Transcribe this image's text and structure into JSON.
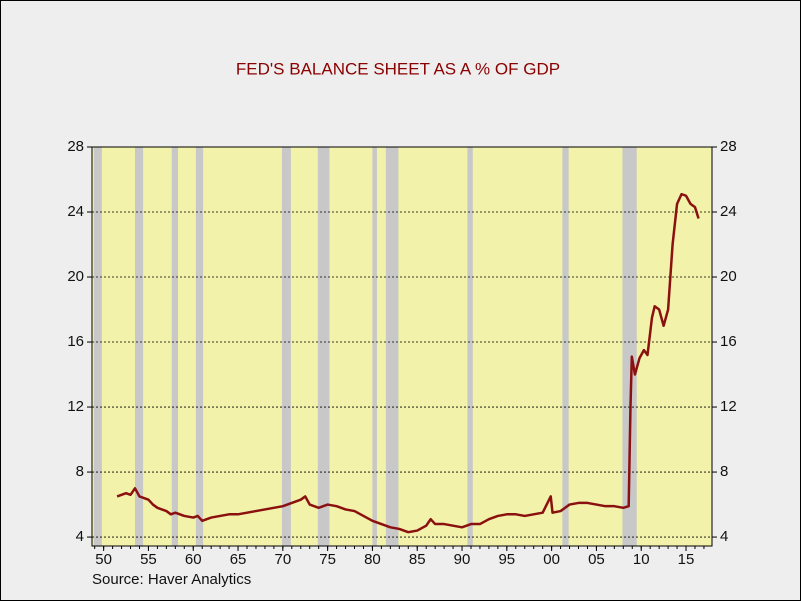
{
  "chart_data": {
    "type": "line",
    "title": "FED'S BALANCE SHEET AS A % OF GDP",
    "source": "Source: Haver Analytics",
    "color": "#8b1010",
    "band_color": "#c8c8c8",
    "xlim": [
      1948.7,
      2017.9
    ],
    "ylim": [
      3.45,
      28
    ],
    "yticks": [
      4,
      8,
      12,
      16,
      20,
      24,
      28
    ],
    "xticks": [
      {
        "value": 1950,
        "label": "50"
      },
      {
        "value": 1955,
        "label": "55"
      },
      {
        "value": 1960,
        "label": "60"
      },
      {
        "value": 1965,
        "label": "65"
      },
      {
        "value": 1970,
        "label": "70"
      },
      {
        "value": 1975,
        "label": "75"
      },
      {
        "value": 1980,
        "label": "80"
      },
      {
        "value": 1985,
        "label": "85"
      },
      {
        "value": 1990,
        "label": "90"
      },
      {
        "value": 1995,
        "label": "95"
      },
      {
        "value": 2000,
        "label": "00"
      },
      {
        "value": 2005,
        "label": "05"
      },
      {
        "value": 2010,
        "label": "10"
      },
      {
        "value": 2015,
        "label": "15"
      }
    ],
    "grid": true,
    "recessions": [
      [
        1948.9,
        1949.8
      ],
      [
        1953.5,
        1954.4
      ],
      [
        1957.6,
        1958.3
      ],
      [
        1960.3,
        1961.1
      ],
      [
        1969.9,
        1970.9
      ],
      [
        1973.9,
        1975.2
      ],
      [
        1980.0,
        1980.5
      ],
      [
        1981.5,
        1982.9
      ],
      [
        1990.6,
        1991.2
      ],
      [
        2001.2,
        2001.9
      ],
      [
        2007.9,
        2009.5
      ]
    ],
    "x": [
      1951.5,
      1952.5,
      1953,
      1953.5,
      1954,
      1955,
      1955.5,
      1956,
      1957,
      1957.5,
      1958,
      1959,
      1960,
      1960.5,
      1961,
      1962,
      1963,
      1964,
      1965,
      1966,
      1967,
      1968,
      1969,
      1970,
      1971,
      1972,
      1972.5,
      1973,
      1974,
      1975,
      1976,
      1977,
      1978,
      1979,
      1980,
      1981,
      1982,
      1983,
      1984,
      1985,
      1986,
      1986.5,
      1987,
      1988,
      1989,
      1990,
      1991,
      1992,
      1993,
      1994,
      1995,
      1996,
      1997,
      1998,
      1999,
      1999.9,
      2000.1,
      2001,
      2002,
      2003,
      2004,
      2005,
      2006,
      2007,
      2008,
      2008.6,
      2008.8,
      2008.95,
      2009.3,
      2009.8,
      2010.3,
      2010.7,
      2011.2,
      2011.5,
      2012,
      2012.5,
      2013,
      2013.5,
      2014,
      2014.5,
      2015,
      2015.5,
      2016,
      2016.4
    ],
    "values": [
      6.5,
      6.7,
      6.6,
      7.0,
      6.5,
      6.3,
      6.0,
      5.8,
      5.6,
      5.4,
      5.5,
      5.3,
      5.2,
      5.3,
      5.0,
      5.2,
      5.3,
      5.4,
      5.4,
      5.5,
      5.6,
      5.7,
      5.8,
      5.9,
      6.1,
      6.3,
      6.5,
      6.0,
      5.8,
      6.0,
      5.9,
      5.7,
      5.6,
      5.3,
      5.0,
      4.8,
      4.6,
      4.5,
      4.3,
      4.4,
      4.7,
      5.1,
      4.8,
      4.8,
      4.7,
      4.6,
      4.8,
      4.8,
      5.1,
      5.3,
      5.4,
      5.4,
      5.3,
      5.4,
      5.5,
      6.5,
      5.5,
      5.6,
      6.0,
      6.1,
      6.1,
      6.0,
      5.9,
      5.9,
      5.8,
      5.9,
      12.0,
      15.1,
      14.0,
      15.0,
      15.5,
      15.2,
      17.5,
      18.2,
      18.0,
      17.0,
      18.0,
      22.0,
      24.5,
      25.1,
      25.0,
      24.5,
      24.3,
      23.6
    ]
  }
}
